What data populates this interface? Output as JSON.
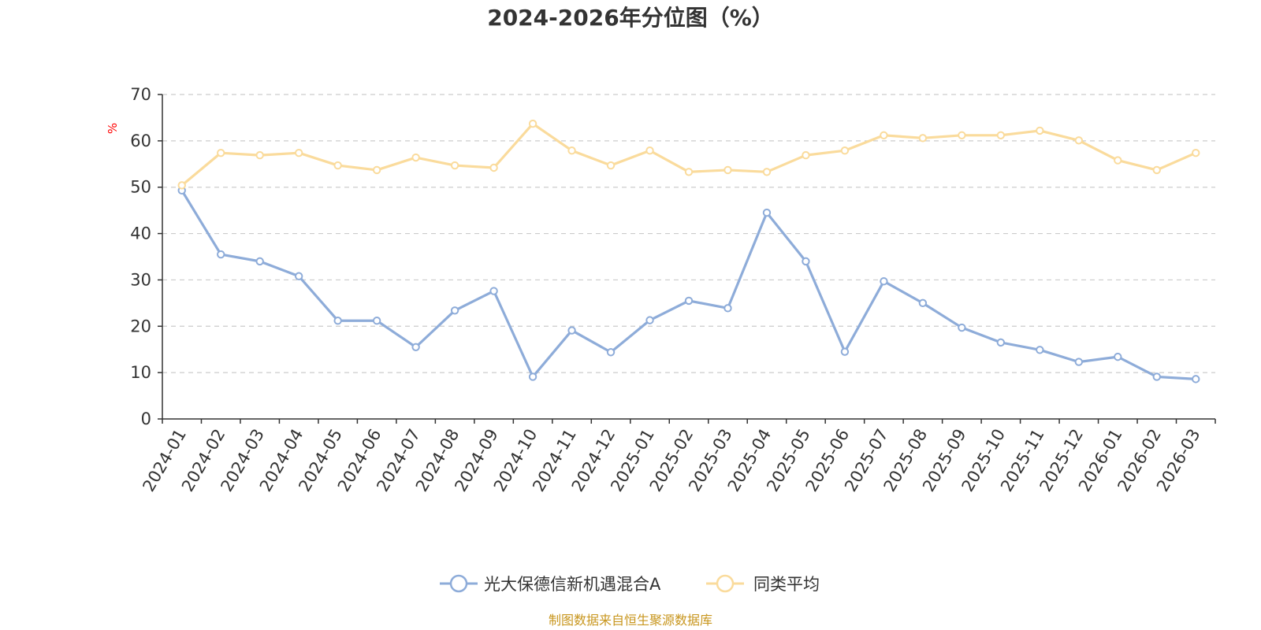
{
  "chart_data": {
    "type": "line",
    "title": "2024-2026年分位图（%）",
    "ylabel": "%",
    "xlabel": "",
    "ylim": [
      0,
      70
    ],
    "yticks": [
      0,
      10,
      20,
      30,
      40,
      50,
      60,
      70
    ],
    "grid": "horizontal-dashed",
    "legend_position": "bottom-center",
    "categories": [
      "2024-01",
      "2024-02",
      "2024-03",
      "2024-04",
      "2024-05",
      "2024-06",
      "2024-07",
      "2024-08",
      "2024-09",
      "2024-10",
      "2024-11",
      "2024-12",
      "2025-01",
      "2025-02",
      "2025-03",
      "2025-04",
      "2025-05",
      "2025-06",
      "2025-07",
      "2025-08",
      "2025-09",
      "2025-10",
      "2025-11",
      "2025-12",
      "2026-01",
      "2026-02",
      "2026-03"
    ],
    "series": [
      {
        "name": "光大保德信新机遇混合A",
        "color": "#8eacd9",
        "values": [
          49.3,
          35.5,
          34.0,
          30.8,
          21.2,
          21.2,
          15.5,
          23.4,
          27.6,
          9.1,
          19.1,
          14.4,
          21.3,
          25.5,
          23.9,
          44.5,
          34.0,
          14.5,
          29.7,
          25.0,
          19.7,
          16.5,
          14.9,
          12.3,
          13.4,
          9.1,
          8.6
        ]
      },
      {
        "name": "同类平均",
        "color": "#fadb9c",
        "values": [
          50.4,
          57.4,
          56.9,
          57.4,
          54.7,
          53.7,
          56.4,
          54.7,
          54.2,
          63.7,
          57.9,
          54.7,
          57.9,
          53.3,
          53.7,
          53.3,
          56.9,
          57.9,
          61.2,
          60.6,
          61.2,
          61.2,
          62.2,
          60.1,
          55.8,
          53.7,
          57.4
        ]
      }
    ],
    "source_note": "制图数据来自恒生聚源数据库"
  }
}
